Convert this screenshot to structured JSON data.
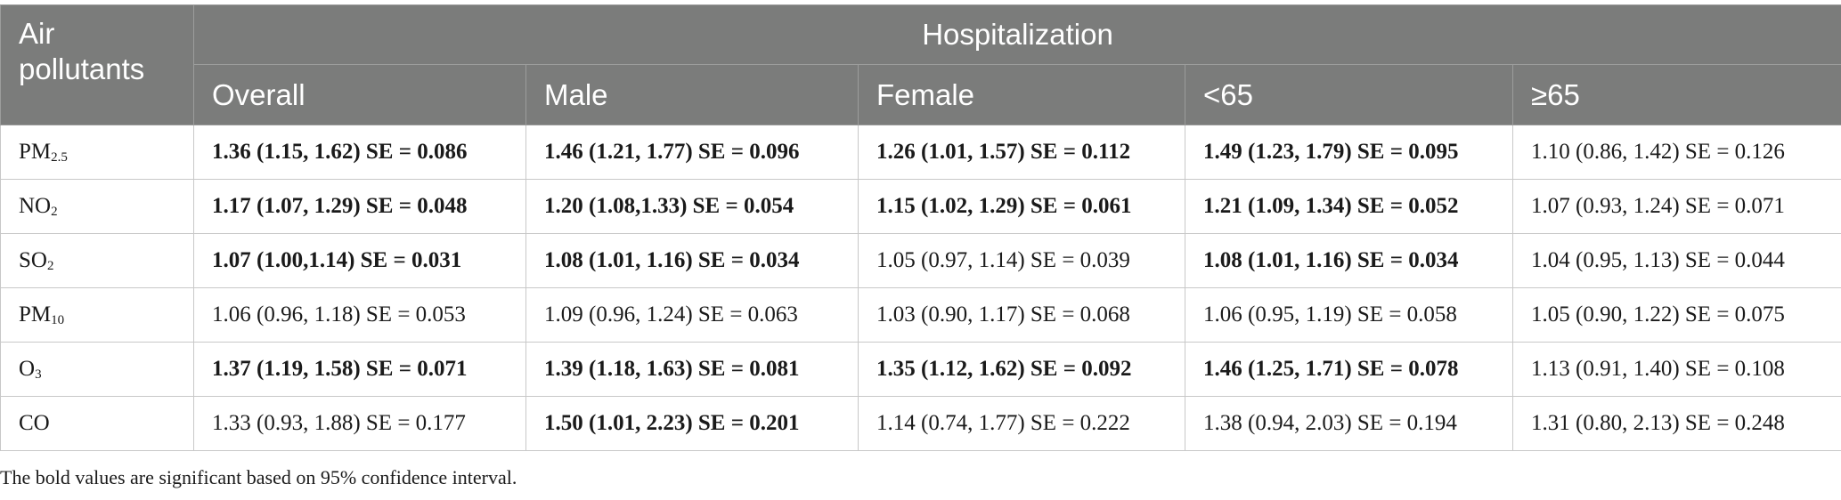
{
  "table": {
    "row_header_label": "Air pollutants",
    "group_header": "Hospitalization",
    "columns": [
      "Overall",
      "Male",
      "Female",
      "<65",
      "≥65"
    ],
    "rows": [
      {
        "pollutant": "PM",
        "subscript": "2.5",
        "cells": [
          {
            "value": "1.36 (1.15, 1.62) SE = 0.086",
            "significant": true
          },
          {
            "value": "1.46 (1.21, 1.77) SE = 0.096",
            "significant": true
          },
          {
            "value": "1.26 (1.01, 1.57) SE = 0.112",
            "significant": true
          },
          {
            "value": "1.49 (1.23, 1.79) SE = 0.095",
            "significant": true
          },
          {
            "value": "1.10 (0.86, 1.42) SE = 0.126",
            "significant": false
          }
        ]
      },
      {
        "pollutant": "NO",
        "subscript": "2",
        "cells": [
          {
            "value": "1.17 (1.07, 1.29) SE = 0.048",
            "significant": true
          },
          {
            "value": "1.20 (1.08,1.33) SE = 0.054",
            "significant": true
          },
          {
            "value": "1.15 (1.02, 1.29) SE = 0.061",
            "significant": true
          },
          {
            "value": "1.21 (1.09, 1.34) SE = 0.052",
            "significant": true
          },
          {
            "value": "1.07 (0.93, 1.24) SE = 0.071",
            "significant": false
          }
        ]
      },
      {
        "pollutant": "SO",
        "subscript": "2",
        "cells": [
          {
            "value": "1.07 (1.00,1.14) SE = 0.031",
            "significant": true
          },
          {
            "value": "1.08 (1.01, 1.16) SE = 0.034",
            "significant": true
          },
          {
            "value": "1.05 (0.97, 1.14) SE = 0.039",
            "significant": false
          },
          {
            "value": "1.08 (1.01, 1.16) SE = 0.034",
            "significant": true
          },
          {
            "value": "1.04 (0.95, 1.13) SE = 0.044",
            "significant": false
          }
        ]
      },
      {
        "pollutant": "PM",
        "subscript": "10",
        "cells": [
          {
            "value": "1.06 (0.96, 1.18) SE = 0.053",
            "significant": false
          },
          {
            "value": "1.09 (0.96, 1.24) SE = 0.063",
            "significant": false
          },
          {
            "value": "1.03 (0.90, 1.17) SE = 0.068",
            "significant": false
          },
          {
            "value": "1.06 (0.95, 1.19) SE = 0.058",
            "significant": false
          },
          {
            "value": "1.05 (0.90, 1.22) SE = 0.075",
            "significant": false
          }
        ]
      },
      {
        "pollutant": "O",
        "subscript": "3",
        "cells": [
          {
            "value": "1.37 (1.19, 1.58) SE = 0.071",
            "significant": true
          },
          {
            "value": "1.39 (1.18, 1.63) SE = 0.081",
            "significant": true
          },
          {
            "value": "1.35 (1.12, 1.62) SE = 0.092",
            "significant": true
          },
          {
            "value": "1.46 (1.25, 1.71) SE = 0.078",
            "significant": true
          },
          {
            "value": "1.13 (0.91, 1.40) SE = 0.108",
            "significant": false
          }
        ]
      },
      {
        "pollutant": "CO",
        "subscript": "",
        "cells": [
          {
            "value": "1.33 (0.93, 1.88) SE = 0.177",
            "significant": false
          },
          {
            "value": "1.50 (1.01, 2.23) SE = 0.201",
            "significant": true
          },
          {
            "value": "1.14 (0.74, 1.77) SE = 0.222",
            "significant": false
          },
          {
            "value": "1.38 (0.94, 2.03) SE = 0.194",
            "significant": false
          },
          {
            "value": "1.31 (0.80, 2.13) SE = 0.248",
            "significant": false
          }
        ]
      }
    ]
  },
  "footnote": "The bold values are significant based on 95% confidence interval.",
  "colors": {
    "header_background": "#7b7c7b",
    "header_text": "#ffffff",
    "grid_line": "#c8c8c8"
  }
}
